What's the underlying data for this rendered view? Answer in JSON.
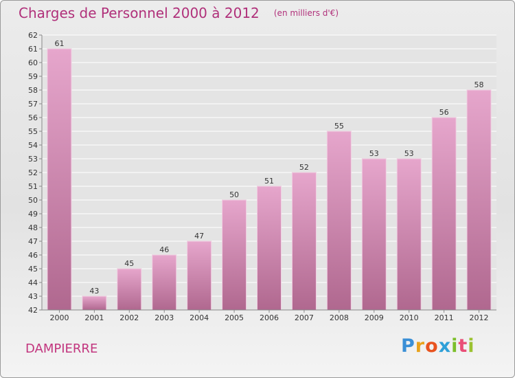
{
  "header": {
    "title": "Charges de Personnel 2000 à 2012",
    "unit_note": "(en milliers d'€)"
  },
  "location": "DAMPIERRE",
  "brand": {
    "letters": [
      "P",
      "r",
      "o",
      "x",
      "i",
      "t",
      "i"
    ],
    "colors": [
      "#3a8fd6",
      "#e8a21c",
      "#e8531f",
      "#2fa0d8",
      "#7cbf2a",
      "#e94e77",
      "#9bc230"
    ]
  },
  "chart_data": {
    "type": "bar",
    "title": "Charges de Personnel 2000 à 2012",
    "subtitle": "(en milliers d'€)",
    "categories": [
      "2000",
      "2001",
      "2002",
      "2003",
      "2004",
      "2005",
      "2006",
      "2007",
      "2008",
      "2009",
      "2010",
      "2011",
      "2012"
    ],
    "values": [
      61,
      43,
      45,
      46,
      47,
      50,
      51,
      52,
      55,
      53,
      53,
      56,
      58
    ],
    "ylim": [
      42,
      62
    ],
    "yticks": [
      42,
      43,
      44,
      45,
      46,
      47,
      48,
      49,
      50,
      51,
      52,
      53,
      54,
      55,
      56,
      57,
      58,
      59,
      60,
      61,
      62
    ],
    "grid": true,
    "colors": {
      "bar_top": "#e6a6cc",
      "bar_bottom": "#b0688f",
      "bar_edge": "#f1cfe2"
    }
  }
}
